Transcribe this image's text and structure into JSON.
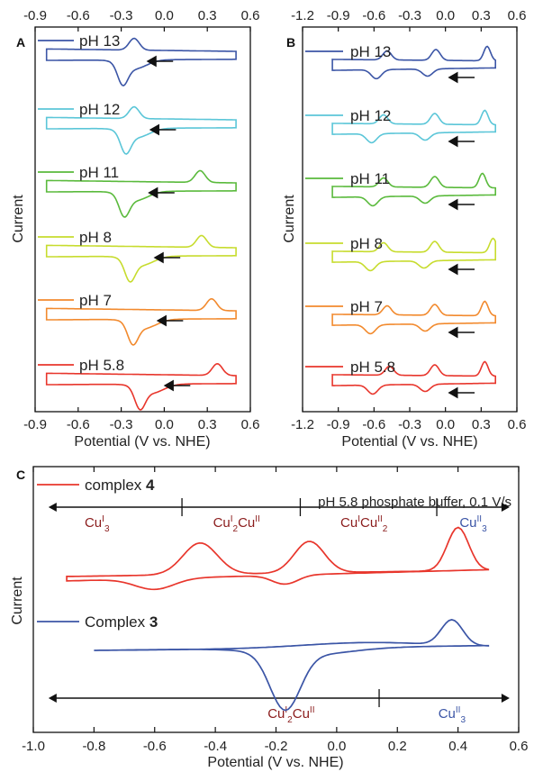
{
  "figure": {
    "colors": {
      "pH13": "#3b55a6",
      "pH12": "#5bc6d8",
      "pH11": "#5aba3c",
      "pH8": "#c7dc2e",
      "pH7": "#f28a2e",
      "pH58": "#e8362c",
      "complex4": "#e8362c",
      "complex3": "#3b55a6",
      "dark_red": "#8b1c1c",
      "blue_text": "#3b55a6"
    }
  },
  "chart_data": [
    {
      "panel": "A",
      "type": "line",
      "ylabel": "Current",
      "xlabel": "Potential (V vs. NHE)",
      "xlim": [
        -0.9,
        0.6
      ],
      "xticks": [
        "-0.9",
        "-0.6",
        "-0.3",
        "0.0",
        "0.3",
        "0.6"
      ],
      "series": [
        {
          "name": "pH 13",
          "color": "#3b55a6",
          "cathodic_peak": -0.29,
          "anodic_peak": -0.21
        },
        {
          "name": "pH 12",
          "color": "#5bc6d8",
          "cathodic_peak": -0.27,
          "anodic_peak": -0.21
        },
        {
          "name": "pH 11",
          "color": "#5aba3c",
          "cathodic_peak": -0.28,
          "anodic_peak": 0.25
        },
        {
          "name": "pH 8",
          "color": "#c7dc2e",
          "cathodic_peak": -0.24,
          "anodic_peak": 0.26
        },
        {
          "name": "pH 7",
          "color": "#f28a2e",
          "cathodic_peak": -0.22,
          "anodic_peak": 0.33
        },
        {
          "name": "pH 5.8",
          "color": "#e8362c",
          "cathodic_peak": -0.17,
          "anodic_peak": 0.37
        }
      ]
    },
    {
      "panel": "B",
      "type": "line",
      "ylabel": "Current",
      "xlabel": "Potential (V vs. NHE)",
      "xlim": [
        -1.2,
        0.6
      ],
      "xticks": [
        "-1.2",
        "-0.9",
        "-0.6",
        "-0.3",
        "0.0",
        "0.3",
        "0.6"
      ],
      "series": [
        {
          "name": "pH 13",
          "color": "#3b55a6",
          "cathodic_peaks": [
            -0.58,
            -0.15
          ],
          "anodic_peaks": [
            -0.49,
            -0.08,
            0.35
          ]
        },
        {
          "name": "pH 12",
          "color": "#5bc6d8",
          "cathodic_peaks": [
            -0.62,
            -0.17
          ],
          "anodic_peaks": [
            -0.52,
            -0.09,
            0.33
          ]
        },
        {
          "name": "pH 11",
          "color": "#5aba3c",
          "cathodic_peaks": [
            -0.61,
            -0.17
          ],
          "anodic_peaks": [
            -0.52,
            -0.09,
            0.31
          ]
        },
        {
          "name": "pH 8",
          "color": "#c7dc2e",
          "cathodic_peaks": [
            -0.63,
            -0.18
          ],
          "anodic_peaks": [
            -0.52,
            -0.09,
            0.4
          ]
        },
        {
          "name": "pH 7",
          "color": "#f28a2e",
          "cathodic_peaks": [
            -0.63,
            -0.17
          ],
          "anodic_peaks": [
            -0.49,
            -0.09,
            0.33
          ]
        },
        {
          "name": "pH 5.8",
          "color": "#e8362c",
          "cathodic_peaks": [
            -0.61,
            -0.17
          ],
          "anodic_peaks": [
            -0.47,
            -0.09,
            0.33
          ]
        }
      ]
    },
    {
      "panel": "C",
      "type": "line",
      "ylabel": "Current",
      "xlabel": "Potential (V vs. NHE)",
      "xlim": [
        -1.0,
        0.6
      ],
      "xticks": [
        "-1.0",
        "-0.8",
        "-0.6",
        "-0.4",
        "-0.2",
        "0.0",
        "0.2",
        "0.4",
        "0.6"
      ],
      "annotation": "pH 5.8 phosphate buffer, 0.1 V/s",
      "series": [
        {
          "name": "complex 4",
          "name_text": "complex ",
          "name_bold": "4",
          "color": "#e8362c",
          "cathodic_peaks": [
            -0.6,
            -0.17
          ],
          "anodic_peaks": [
            -0.45,
            -0.09,
            0.4
          ]
        },
        {
          "name": "Complex 3",
          "name_text": "Complex ",
          "name_bold": "3",
          "color": "#3b55a6",
          "cathodic_peaks": [
            -0.17
          ],
          "anodic_peaks": [
            0.38
          ]
        }
      ],
      "regions_top": [
        {
          "base": "Cu",
          "sup1": "I",
          "sub1": "3",
          "mid": "",
          "sup2": "",
          "sub2": "",
          "colors": [
            "#8b1c1c"
          ]
        },
        {
          "base": "Cu",
          "sup1": "I",
          "sub1": "2",
          "mid": "Cu",
          "sup2": "II",
          "sub2": "",
          "colors": [
            "#8b1c1c",
            "#8b1c1c"
          ]
        },
        {
          "base": "Cu",
          "sup1": "I",
          "sub1": "",
          "mid": "Cu",
          "sup2": "II",
          "sub2": "2",
          "colors": [
            "#8b1c1c",
            "#8b1c1c"
          ]
        },
        {
          "base": "Cu",
          "sup1": "II",
          "sub1": "3",
          "mid": "",
          "sup2": "",
          "sub2": "",
          "colors": [
            "#3b55a6"
          ]
        }
      ],
      "regions_bottom": [
        {
          "base": "Cu",
          "sup1": "I",
          "sub1": "2",
          "mid": "Cu",
          "sup2": "II",
          "sub2": "",
          "colors": [
            "#8b1c1c",
            "#8b1c1c"
          ]
        },
        {
          "base": "Cu",
          "sup1": "II",
          "sub1": "3",
          "mid": "",
          "sup2": "",
          "sub2": "",
          "colors": [
            "#3b55a6"
          ]
        }
      ],
      "top_boundaries_V": [
        -0.51,
        -0.12,
        0.33
      ],
      "bottom_boundaries_V": [
        0.14
      ]
    }
  ]
}
